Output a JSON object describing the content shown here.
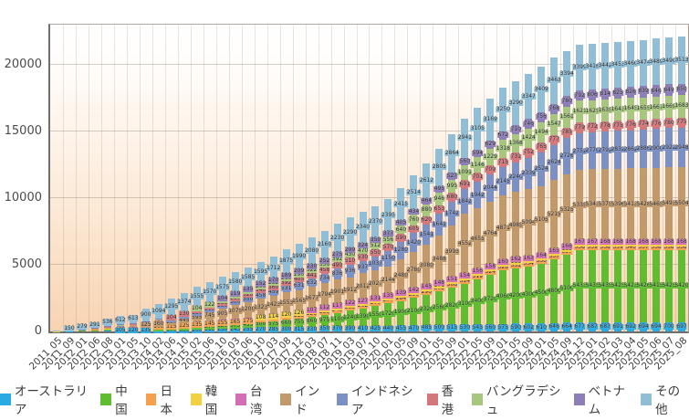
{
  "chart_data": {
    "type": "bar",
    "stacked": true,
    "title": "",
    "xlabel": "",
    "ylabel": "",
    "grid": true,
    "legend_position": "bottom",
    "ylim": [
      0,
      23000
    ],
    "y_ticks": [
      0,
      5000,
      10000,
      15000,
      20000
    ],
    "categories": [
      "2011_05",
      "2011_09",
      "2012_01",
      "2012_06",
      "2012_08",
      "2013_01",
      "2013_05",
      "2013_10",
      "2014_02",
      "2014_06",
      "2014_10",
      "2015_02",
      "2015_06",
      "2015_10",
      "2016_03",
      "2016_06",
      "2016_10",
      "2017_03",
      "2017_08",
      "2017_12",
      "2018_03",
      "2018_07",
      "2018_11",
      "2019_03",
      "2019_07",
      "2019_10",
      "2020_01",
      "2020_05",
      "2020_09",
      "2021_01",
      "2021_05",
      "2021_09",
      "2022_01",
      "2022_05",
      "2022_09",
      "2023_01",
      "2023_05",
      "2023_09",
      "2024_01",
      "2024_05",
      "2024_09",
      "2024_12",
      "2025_01",
      "2025_02",
      "2025_03",
      "2025_04",
      "2025_05",
      "2025_06",
      "2025_07",
      "2025_08"
    ],
    "series": [
      {
        "name": "オーストラリア",
        "color": "#29ABE2",
        "values": [
          10,
          30,
          55,
          75,
          90,
          105,
          120,
          135,
          155,
          170,
          185,
          200,
          215,
          230,
          245,
          255,
          270,
          285,
          300,
          315,
          330,
          350,
          370,
          390,
          410,
          425,
          440,
          455,
          470,
          485,
          500,
          515,
          530,
          545,
          560,
          575,
          590,
          602,
          610,
          646,
          664,
          677,
          687,
          687,
          691,
          692,
          694,
          694,
          700,
          697
        ]
      },
      {
        "name": "中国",
        "color": "#5FBD2F",
        "values": [
          2,
          8,
          15,
          25,
          40,
          55,
          75,
          95,
          120,
          150,
          185,
          225,
          270,
          320,
          375,
          435,
          500,
          575,
          660,
          755,
          860,
          975,
          1100,
          1240,
          1390,
          1550,
          1720,
          1900,
          2100,
          2320,
          2560,
          2820,
          3100,
          3400,
          3720,
          4060,
          4200,
          4300,
          4500,
          4800,
          5100,
          5433,
          5435,
          5435,
          5425,
          5423,
          5426,
          5415,
          5425,
          5420
        ]
      },
      {
        "name": "日本",
        "color": "#F5A04C",
        "values": [
          15,
          25,
          40,
          55,
          65,
          75,
          85,
          95,
          105,
          115,
          125,
          135,
          145,
          155,
          165,
          175,
          185,
          195,
          205,
          215,
          225,
          235,
          245,
          255,
          262,
          270,
          277,
          284,
          290,
          296,
          302,
          308,
          314,
          319,
          324,
          328,
          331,
          334,
          336,
          337,
          337,
          338,
          339,
          338,
          339,
          340,
          337,
          338,
          338,
          338
        ]
      },
      {
        "name": "韓国",
        "color": "#F2D03F",
        "values": [
          8,
          14,
          22,
          30,
          36,
          42,
          48,
          54,
          60,
          66,
          72,
          78,
          84,
          90,
          96,
          102,
          108,
          114,
          120,
          126,
          132,
          138,
          144,
          150,
          155,
          160,
          164,
          168,
          172,
          175,
          178,
          181,
          183,
          185,
          186,
          187,
          188,
          188,
          189,
          189,
          189,
          190,
          190,
          190,
          190,
          190,
          190,
          190,
          190,
          190
        ]
      },
      {
        "name": "台湾",
        "color": "#D46EB4",
        "values": [
          5,
          10,
          16,
          22,
          27,
          32,
          37,
          42,
          47,
          52,
          57,
          62,
          67,
          72,
          77,
          82,
          87,
          92,
          97,
          102,
          107,
          112,
          117,
          122,
          127,
          131,
          135,
          139,
          142,
          145,
          148,
          151,
          154,
          156,
          158,
          160,
          162,
          163,
          164,
          165,
          166,
          167,
          167,
          168,
          168,
          168,
          168,
          168,
          168,
          168
        ]
      },
      {
        "name": "インド",
        "color": "#C2996B",
        "values": [
          0,
          5,
          15,
          30,
          45,
          70,
          95,
          125,
          160,
          290,
          445,
          595,
          745,
          905,
          1075,
          1200,
          1323,
          1423,
          1553,
          1565,
          1677,
          1794,
          1901,
          1912,
          2012,
          2027,
          2144,
          2480,
          2780,
          3080,
          3488,
          3993,
          4552,
          4655,
          4764,
          4871,
          4985,
          5094,
          5105,
          5215,
          5325,
          5335,
          5343,
          5375,
          5396,
          5413,
          5428,
          5465,
          5493,
          5504
        ]
      },
      {
        "name": "インドネシア",
        "color": "#7B90C5",
        "values": [
          0,
          5,
          10,
          20,
          30,
          45,
          60,
          80,
          100,
          125,
          150,
          180,
          215,
          255,
          300,
          350,
          458,
          459,
          531,
          631,
          632,
          734,
          836,
          936,
          937,
          1037,
          1150,
          1280,
          1420,
          1541,
          1641,
          1742,
          1842,
          1942,
          2044,
          2145,
          2240,
          2339,
          2524,
          2624,
          2726,
          2752,
          2770,
          2792,
          2832,
          2862,
          2886,
          2900,
          2922,
          2948
        ]
      },
      {
        "name": "香港",
        "color": "#D4777C",
        "values": [
          5,
          12,
          20,
          30,
          40,
          52,
          64,
          76,
          90,
          104,
          130,
          160,
          195,
          235,
          280,
          320,
          346,
          360,
          392,
          405,
          441,
          458,
          490,
          510,
          530,
          550,
          570,
          590,
          605,
          620,
          653,
          680,
          691,
          701,
          709,
          715,
          731,
          752,
          765,
          777,
          785,
          779,
          772,
          778,
          775,
          776,
          774,
          776,
          780,
          775
        ]
      },
      {
        "name": "バングラデシュ",
        "color": "#A6C77D",
        "values": [
          0,
          3,
          8,
          14,
          20,
          28,
          38,
          48,
          60,
          74,
          88,
          104,
          122,
          140,
          160,
          182,
          206,
          232,
          260,
          290,
          322,
          356,
          392,
          430,
          470,
          512,
          556,
          640,
          760,
          880,
          946,
          995,
          1091,
          1146,
          1229,
          1318,
          1368,
          1424,
          1494,
          1547,
          1561,
          1621,
          1625,
          1635,
          1643,
          1645,
          1655,
          1667,
          1669,
          1683
        ]
      },
      {
        "name": "ベトナム",
        "color": "#8C7EB8",
        "values": [
          0,
          2,
          5,
          9,
          14,
          20,
          27,
          35,
          44,
          54,
          65,
          77,
          90,
          104,
          119,
          135,
          152,
          170,
          189,
          209,
          230,
          252,
          275,
          299,
          324,
          350,
          377,
          405,
          434,
          464,
          495,
          527,
          560,
          594,
          629,
          672,
          710,
          746,
          756,
          768,
          780,
          792,
          806,
          814,
          825,
          826,
          839,
          846,
          849,
          850
        ]
      },
      {
        "name": "その他",
        "color": "#90BED7",
        "values": [
          50,
          150,
          279,
          291,
          536,
          612,
          613,
          900,
          1094,
          1295,
          1374,
          1555,
          1570,
          1575,
          1580,
          1585,
          1595,
          1712,
          1875,
          1990,
          2080,
          2160,
          2230,
          2290,
          2340,
          2370,
          2395,
          2415,
          2514,
          2612,
          2805,
          2864,
          2941,
          3105,
          3169,
          3250,
          3290,
          3347,
          3409,
          3463,
          3394,
          3399,
          3416,
          3442,
          3453,
          3460,
          3474,
          3489,
          3490,
          3513
        ]
      }
    ]
  }
}
